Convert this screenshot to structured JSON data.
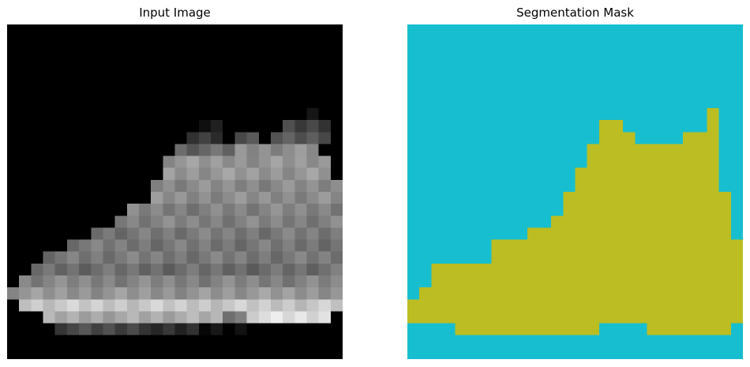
{
  "figure": {
    "left_title": "Input Image",
    "right_title": "Segmentation Mask"
  },
  "colors": {
    "background": "#000000",
    "mask_background": "#17becf",
    "mask_foreground": "#bcbd22"
  },
  "images": {
    "input": {
      "description_type": "grayscale 28x28 pixel image of a high-top sneaker (ankle boot)"
    },
    "mask": {
      "classes": [
        "background",
        "object"
      ]
    }
  }
}
